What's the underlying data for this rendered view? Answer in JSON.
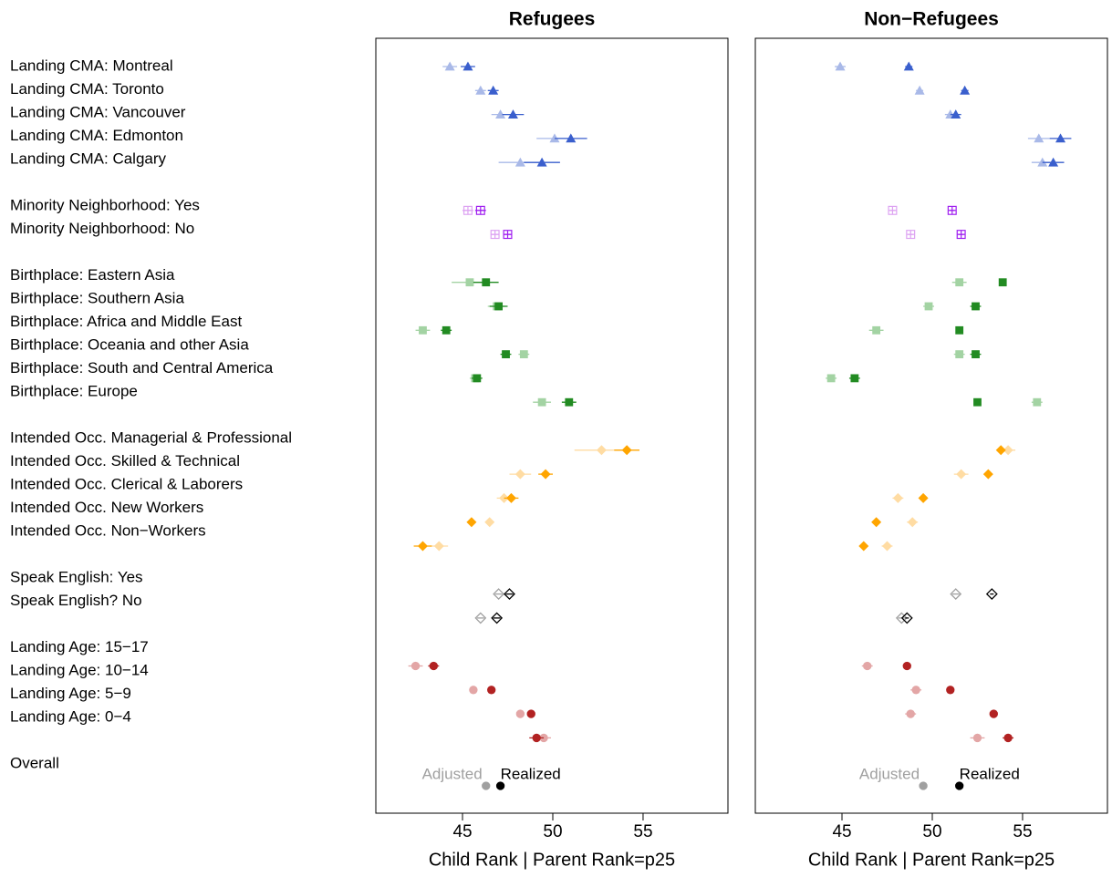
{
  "chart_data": [
    {
      "type": "dot",
      "title": "Refugees",
      "x_label": "Child Rank | Parent Rank=p25",
      "xlim": [
        40.2,
        59.7
      ],
      "xticks": [
        45,
        50,
        55
      ],
      "categories": [
        "Landing CMA: Montreal",
        "Landing CMA: Toronto",
        "Landing CMA: Vancouver",
        "Landing CMA: Edmonton",
        "Landing CMA: Calgary",
        null,
        "Minority Neighborhood: Yes",
        "Minority Neighborhood: No",
        null,
        "Birthplace: Eastern Asia",
        "Birthplace: Southern Asia",
        "Birthplace: Africa and Middle East",
        "Birthplace: Oceania and other Asia",
        "Birthplace: South and Central America",
        "Birthplace: Europe",
        null,
        "Intended Occ. Managerial & Professional",
        "Intended Occ. Skilled & Technical",
        "Intended Occ. Clerical & Laborers",
        "Intended Occ. New Workers",
        "Intended Occ. Non−Workers",
        null,
        "Speak English: Yes",
        "Speak English? No",
        null,
        "Landing Age: 15−17",
        "Landing Age: 10−14",
        "Landing Age: 5−9",
        "Landing Age: 0−4",
        null,
        "Overall"
      ],
      "markers": [
        "triangle",
        "triangle",
        "triangle",
        "triangle",
        "triangle",
        null,
        "squareplus",
        "squareplus",
        null,
        "square",
        "square",
        "square",
        "square",
        "square",
        "square",
        null,
        "diamond",
        "diamond",
        "diamond",
        "diamond",
        "diamond",
        null,
        "odiamond",
        "odiamond",
        null,
        "circle",
        "circle",
        "circle",
        "circle",
        null,
        "circle"
      ],
      "series": [
        {
          "name": "Adjusted",
          "colors": [
            "#a9b9e8",
            "#a9b9e8",
            "#a9b9e8",
            "#a9b9e8",
            "#a9b9e8",
            null,
            "#dda3f2",
            "#dda3f2",
            null,
            "#a3d3a3",
            "#a3d3a3",
            "#a3d3a3",
            "#a3d3a3",
            "#a3d3a3",
            "#a3d3a3",
            null,
            "#ffdca3",
            "#ffdca3",
            "#ffdca3",
            "#ffdca3",
            "#ffdca3",
            null,
            "#a0a0a0",
            "#a0a0a0",
            null,
            "#e3a6a6",
            "#e3a6a6",
            "#e3a6a6",
            "#e3a6a6",
            null,
            "#a0a0a0"
          ],
          "values": [
            44.3,
            46.0,
            47.1,
            50.1,
            48.2,
            null,
            45.3,
            46.8,
            null,
            45.4,
            46.9,
            42.8,
            48.4,
            45.7,
            49.4,
            null,
            52.7,
            48.2,
            47.3,
            46.5,
            43.7,
            null,
            47.0,
            46.0,
            null,
            42.4,
            45.6,
            48.2,
            49.5,
            null,
            46.3
          ],
          "errors": [
            0.4,
            0.3,
            0.5,
            1.0,
            1.2,
            null,
            0.3,
            0.2,
            null,
            1.0,
            0.5,
            0.4,
            0.3,
            0.3,
            0.5,
            null,
            1.5,
            0.6,
            0.4,
            0.2,
            0.5,
            null,
            0.2,
            0.2,
            null,
            0.4,
            0.2,
            0.2,
            0.4,
            null,
            0.1
          ]
        },
        {
          "name": "Realized",
          "colors": [
            "#3a5fcd",
            "#3a5fcd",
            "#3a5fcd",
            "#3a5fcd",
            "#3a5fcd",
            null,
            "#a020f0",
            "#a020f0",
            null,
            "#228b22",
            "#228b22",
            "#228b22",
            "#228b22",
            "#228b22",
            "#228b22",
            null,
            "#ffa500",
            "#ffa500",
            "#ffa500",
            "#ffa500",
            "#ffa500",
            null,
            "#000000",
            "#000000",
            null,
            "#b22222",
            "#b22222",
            "#b22222",
            "#b22222",
            null,
            "#000000"
          ],
          "values": [
            45.3,
            46.7,
            47.8,
            51.0,
            49.4,
            null,
            46.0,
            47.5,
            null,
            46.3,
            47.0,
            44.1,
            47.4,
            45.8,
            50.9,
            null,
            54.1,
            49.6,
            47.7,
            45.5,
            42.8,
            null,
            47.6,
            46.9,
            null,
            43.4,
            46.6,
            48.8,
            49.1,
            null,
            47.1
          ],
          "errors": [
            0.4,
            0.3,
            0.6,
            0.9,
            1.0,
            null,
            0.3,
            0.2,
            null,
            0.7,
            0.5,
            0.3,
            0.3,
            0.3,
            0.4,
            null,
            0.7,
            0.4,
            0.4,
            0.2,
            0.5,
            null,
            0.2,
            0.2,
            null,
            0.3,
            0.2,
            0.2,
            0.4,
            null,
            0.1
          ]
        }
      ]
    },
    {
      "type": "dot",
      "title": "Non−Refugees",
      "x_label": "Child Rank | Parent Rank=p25",
      "xlim": [
        40.2,
        59.7
      ],
      "xticks": [
        45,
        50,
        55
      ],
      "series": [
        {
          "name": "Adjusted",
          "colors": [
            "#a9b9e8",
            "#a9b9e8",
            "#a9b9e8",
            "#a9b9e8",
            "#a9b9e8",
            null,
            "#dda3f2",
            "#dda3f2",
            null,
            "#a3d3a3",
            "#a3d3a3",
            "#a3d3a3",
            "#a3d3a3",
            "#a3d3a3",
            "#a3d3a3",
            null,
            "#ffdca3",
            "#ffdca3",
            "#ffdca3",
            "#ffdca3",
            "#ffdca3",
            null,
            "#a0a0a0",
            "#a0a0a0",
            null,
            "#e3a6a6",
            "#e3a6a6",
            "#e3a6a6",
            "#e3a6a6",
            null,
            "#a0a0a0"
          ],
          "values": [
            44.9,
            49.3,
            51.0,
            55.9,
            56.1,
            null,
            47.8,
            48.8,
            null,
            51.5,
            49.8,
            46.9,
            51.5,
            44.4,
            55.8,
            null,
            54.2,
            51.6,
            48.1,
            48.9,
            47.5,
            null,
            51.3,
            48.3,
            null,
            46.4,
            49.1,
            48.8,
            52.5,
            null,
            49.5
          ],
          "errors": [
            0.3,
            0.2,
            0.3,
            0.6,
            0.6,
            null,
            0.15,
            0.15,
            null,
            0.4,
            0.3,
            0.4,
            0.3,
            0.3,
            0.3,
            null,
            0.4,
            0.4,
            0.3,
            0.3,
            0.3,
            null,
            0.2,
            0.2,
            null,
            0.3,
            0.3,
            0.3,
            0.4,
            null,
            0.1
          ]
        },
        {
          "name": "Realized",
          "colors": [
            "#3a5fcd",
            "#3a5fcd",
            "#3a5fcd",
            "#3a5fcd",
            "#3a5fcd",
            null,
            "#a020f0",
            "#a020f0",
            null,
            "#228b22",
            "#228b22",
            "#228b22",
            "#228b22",
            "#228b22",
            "#228b22",
            null,
            "#ffa500",
            "#ffa500",
            "#ffa500",
            "#ffa500",
            "#ffa500",
            null,
            "#000000",
            "#000000",
            null,
            "#b22222",
            "#b22222",
            "#b22222",
            "#b22222",
            null,
            "#000000"
          ],
          "values": [
            48.7,
            51.8,
            51.3,
            57.1,
            56.7,
            null,
            51.1,
            51.6,
            null,
            53.9,
            52.4,
            51.5,
            52.4,
            45.7,
            52.5,
            null,
            53.8,
            53.1,
            49.5,
            46.9,
            46.2,
            null,
            53.3,
            48.6,
            null,
            48.6,
            51.0,
            53.4,
            54.2,
            null,
            51.5
          ],
          "errors": [
            0.2,
            0.2,
            0.3,
            0.6,
            0.6,
            null,
            0.15,
            0.15,
            null,
            0.1,
            0.3,
            0.2,
            0.3,
            0.3,
            0.2,
            null,
            0.2,
            0.1,
            0.2,
            0.2,
            0.2,
            null,
            0.1,
            0.1,
            null,
            0.1,
            0.1,
            0.1,
            0.3,
            null,
            0.1
          ]
        }
      ]
    }
  ]
}
